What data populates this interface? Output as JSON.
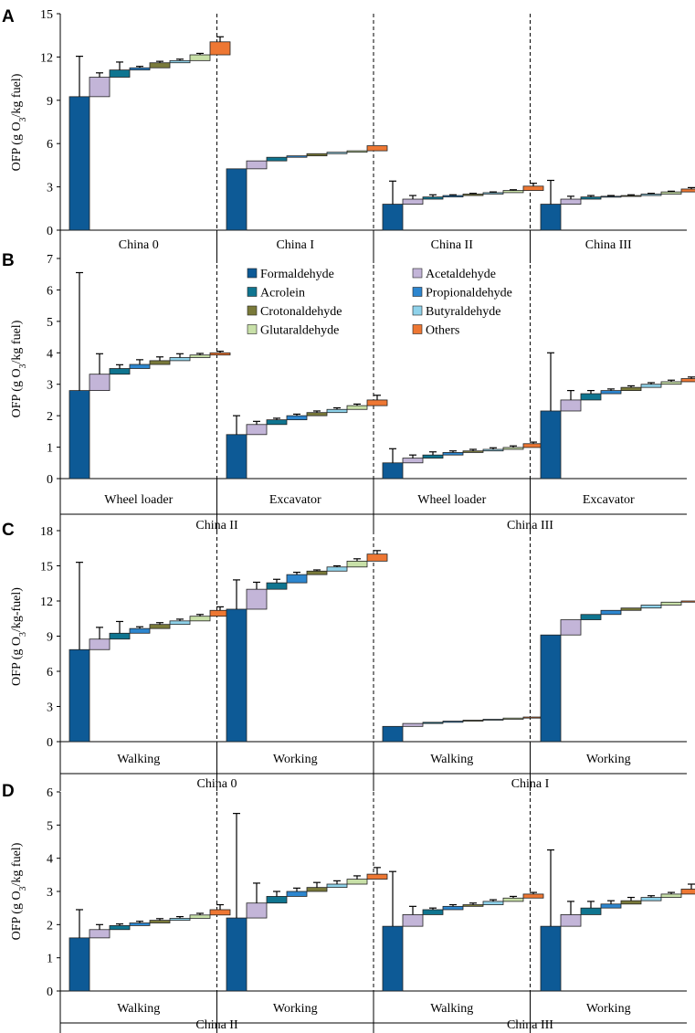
{
  "chart_data": {
    "type": "bar",
    "subtype": "waterfall",
    "colors": {
      "Formaldehyde": "#0d5a96",
      "Acetaldehyde": "#c3b5d8",
      "Acrolein": "#0f7590",
      "Propionaldehyde": "#2d86cf",
      "Crotonaldehyde": "#7a7a3a",
      "Butyraldehyde": "#8fd2ea",
      "Glutaraldehyde": "#c8e0a8",
      "Others": "#ee7733"
    },
    "legend": {
      "entries": [
        "Formaldehyde",
        "Acetaldehyde",
        "Acrolein",
        "Propionaldehyde",
        "Crotonaldehyde",
        "Butyraldehyde",
        "Glutaraldehyde",
        "Others"
      ],
      "placement": "panel B, center"
    },
    "panels": [
      {
        "letter": "A",
        "ylabel": "OFP (g O3/kg fuel)",
        "ylabel_main": "OFP (g O",
        "ylabel_sub": "3",
        "ylabel_tail": "/kg fuel)",
        "ylim": [
          0,
          15
        ],
        "ticks": [
          0,
          3,
          6,
          9,
          12,
          15
        ],
        "tick_labels": [
          "0",
          "3",
          "6",
          "9",
          "12",
          "15"
        ],
        "groups": [
          {
            "label": "China 0",
            "values": [
              9.25,
              1.35,
              0.5,
              0.15,
              0.35,
              0.15,
              0.4,
              0.9
            ],
            "errors": [
              2.8,
              0.3,
              0.55,
              0.1,
              0.1,
              0.1,
              0.1,
              0.35
            ]
          },
          {
            "label": "China I",
            "values": [
              4.25,
              0.55,
              0.25,
              0.1,
              0.15,
              0.1,
              0.1,
              0.35
            ],
            "errors": [
              0,
              0,
              0,
              0,
              0,
              0,
              0,
              0
            ]
          },
          {
            "label": "China II",
            "values": [
              1.8,
              0.35,
              0.15,
              0.1,
              0.1,
              0.1,
              0.15,
              0.3
            ],
            "errors": [
              1.6,
              0.25,
              0.15,
              0.05,
              0.05,
              0.05,
              0.05,
              0.2
            ]
          },
          {
            "label": "China III",
            "values": [
              1.8,
              0.35,
              0.15,
              0.05,
              0.05,
              0.1,
              0.15,
              0.2
            ],
            "errors": [
              1.65,
              0.2,
              0.1,
              0.05,
              0.05,
              0.05,
              0.05,
              0.1
            ]
          }
        ],
        "outer_groups": []
      },
      {
        "letter": "B",
        "ylabel": "OFP (g O3/kg fuel)",
        "ylabel_main": "OFP (g O",
        "ylabel_sub": "3",
        "ylabel_tail": "/kg fuel)",
        "ylim": [
          0,
          7
        ],
        "ticks": [
          0,
          1,
          2,
          3,
          4,
          5,
          6,
          7
        ],
        "tick_labels": [
          "0",
          "1",
          "2",
          "3",
          "4",
          "5",
          "6",
          "7"
        ],
        "groups": [
          {
            "label": "Wheel loader",
            "values": [
              2.8,
              0.52,
              0.18,
              0.13,
              0.12,
              0.1,
              0.08,
              0.07
            ],
            "errors": [
              3.75,
              0.65,
              0.12,
              0.15,
              0.12,
              0.12,
              0.05,
              0.05
            ]
          },
          {
            "label": "Excavator",
            "values": [
              1.4,
              0.32,
              0.15,
              0.13,
              0.1,
              0.1,
              0.12,
              0.18
            ],
            "errors": [
              0.6,
              0.1,
              0.05,
              0.05,
              0.05,
              0.05,
              0.05,
              0.15
            ]
          },
          {
            "label": "Wheel loader",
            "values": [
              0.5,
              0.15,
              0.1,
              0.08,
              0.05,
              0.05,
              0.06,
              0.12
            ],
            "errors": [
              0.45,
              0.1,
              0.1,
              0.05,
              0.05,
              0.05,
              0.05,
              0.05
            ]
          },
          {
            "label": "Excavator",
            "values": [
              2.15,
              0.35,
              0.2,
              0.1,
              0.1,
              0.1,
              0.08,
              0.1
            ],
            "errors": [
              1.85,
              0.3,
              0.1,
              0.05,
              0.05,
              0.05,
              0.05,
              0.05
            ]
          }
        ],
        "outer_groups": [
          "China II",
          "China III"
        ]
      },
      {
        "letter": "C",
        "ylabel": "OFP (g O3/kg-fuel)",
        "ylabel_main": "OFP (g O",
        "ylabel_sub": "3",
        "ylabel_tail": "/kg-fuel)",
        "ylim": [
          0,
          18
        ],
        "ticks": [
          0,
          3,
          6,
          9,
          12,
          15,
          18
        ],
        "tick_labels": [
          "0",
          "3",
          "6",
          "9",
          "12",
          "15",
          "18"
        ],
        "groups": [
          {
            "label": "Walking",
            "values": [
              7.85,
              0.9,
              0.5,
              0.4,
              0.35,
              0.3,
              0.4,
              0.5
            ],
            "errors": [
              7.45,
              1.0,
              1.0,
              0.15,
              0.15,
              0.15,
              0.15,
              0.3
            ]
          },
          {
            "label": "Working",
            "values": [
              11.3,
              1.7,
              0.55,
              0.7,
              0.3,
              0.35,
              0.5,
              0.6
            ],
            "errors": [
              2.5,
              0.6,
              0.3,
              0.2,
              0.1,
              0.1,
              0.2,
              0.3
            ]
          },
          {
            "label": "Walking",
            "values": [
              1.3,
              0.25,
              0.1,
              0.1,
              0.08,
              0.08,
              0.1,
              0.09
            ],
            "errors": [
              0,
              0,
              0,
              0,
              0,
              0,
              0,
              0
            ]
          },
          {
            "label": "Working",
            "values": [
              9.1,
              1.3,
              0.45,
              0.35,
              0.2,
              0.25,
              0.25,
              0.1
            ],
            "errors": [
              0,
              0,
              0,
              0,
              0,
              0,
              0,
              0
            ]
          }
        ],
        "outer_groups": [
          "China 0",
          "China I"
        ]
      },
      {
        "letter": "D",
        "ylabel": "OFP (g O3/kg fuel)",
        "ylabel_main": "OFP (g O",
        "ylabel_sub": "3",
        "ylabel_tail": "/kg fuel)",
        "ylim": [
          0,
          6
        ],
        "ticks": [
          0,
          1,
          2,
          3,
          4,
          5,
          6
        ],
        "tick_labels": [
          "0",
          "1",
          "2",
          "3",
          "4",
          "5",
          "6"
        ],
        "groups": [
          {
            "label": "Walking",
            "values": [
              1.6,
              0.25,
              0.12,
              0.08,
              0.08,
              0.06,
              0.1,
              0.16
            ],
            "errors": [
              0.85,
              0.15,
              0.05,
              0.05,
              0.05,
              0.05,
              0.05,
              0.15
            ]
          },
          {
            "label": "Working",
            "values": [
              2.2,
              0.45,
              0.2,
              0.15,
              0.12,
              0.1,
              0.15,
              0.15
            ],
            "errors": [
              3.15,
              0.6,
              0.15,
              0.1,
              0.15,
              0.1,
              0.1,
              0.2
            ]
          },
          {
            "label": "Walking",
            "values": [
              1.95,
              0.35,
              0.15,
              0.1,
              0.05,
              0.1,
              0.1,
              0.12
            ],
            "errors": [
              1.65,
              0.25,
              0.05,
              0.05,
              0.05,
              0.05,
              0.05,
              0.05
            ]
          },
          {
            "label": "Working",
            "values": [
              1.95,
              0.35,
              0.2,
              0.12,
              0.1,
              0.1,
              0.1,
              0.15
            ],
            "errors": [
              2.3,
              0.4,
              0.2,
              0.1,
              0.1,
              0.05,
              0.05,
              0.15
            ]
          }
        ],
        "outer_groups": [
          "China II",
          "China III"
        ]
      }
    ]
  }
}
